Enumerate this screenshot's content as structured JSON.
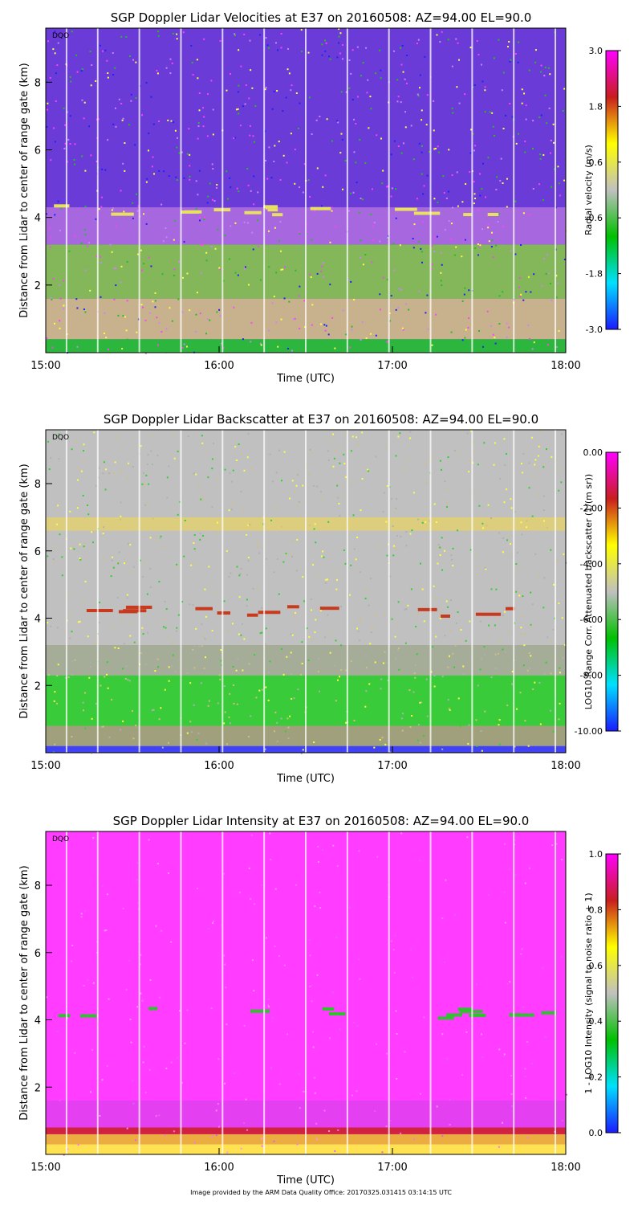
{
  "chart_data": [
    {
      "type": "heatmap",
      "title": "SGP Doppler Lidar Velocities at E37 on 20160508: AZ=94.00 EL=90.0",
      "xlabel": "Time (UTC)",
      "ylabel": "Distance from Lidar to center of range gate (km)",
      "x_ticks": [
        "15:00",
        "16:00",
        "17:00",
        "18:00"
      ],
      "y_ticks": [
        2,
        4,
        6,
        8
      ],
      "ylim": [
        0,
        9.6
      ],
      "xlim": [
        "15:00",
        "18:00"
      ],
      "corner_label": "DQO",
      "colorbar": {
        "label": "Radial velocity (m/s)",
        "ticks": [
          "3.0",
          "1.8",
          "0.6",
          "-0.6",
          "-1.8",
          "-3.0"
        ],
        "min": -3.0,
        "max": 3.0
      },
      "scheme": "velocity"
    },
    {
      "type": "heatmap",
      "title": "SGP Doppler Lidar Backscatter at E37 on 20160508: AZ=94.00 EL=90.0",
      "xlabel": "Time (UTC)",
      "ylabel": "Distance from Lidar to center of range gate (km)",
      "x_ticks": [
        "15:00",
        "16:00",
        "17:00",
        "18:00"
      ],
      "y_ticks": [
        2,
        4,
        6,
        8
      ],
      "ylim": [
        0,
        9.6
      ],
      "xlim": [
        "15:00",
        "18:00"
      ],
      "corner_label": "DQO",
      "colorbar": {
        "label": "LOG10 Range Corr. Attenuated backscatter (1/(m sr))",
        "ticks": [
          "0.00",
          "-2.00",
          "-4.00",
          "-6.00",
          "-8.00",
          "-10.00"
        ],
        "min": -10.0,
        "max": 0.0
      },
      "scheme": "backscatter"
    },
    {
      "type": "heatmap",
      "title": "SGP Doppler Lidar Intensity at E37 on 20160508: AZ=94.00 EL=90.0",
      "xlabel": "Time (UTC)",
      "ylabel": "Distance from Lidar to center of range gate (km)",
      "x_ticks": [
        "15:00",
        "16:00",
        "17:00",
        "18:00"
      ],
      "y_ticks": [
        2,
        4,
        6,
        8
      ],
      "ylim": [
        0,
        9.6
      ],
      "xlim": [
        "15:00",
        "18:00"
      ],
      "corner_label": "DQO",
      "colorbar": {
        "label": "1 - LOG10 Intensity (signal to noise ratio + 1)",
        "ticks": [
          "1.0",
          "0.8",
          "0.6",
          "0.4",
          "0.2",
          "0.0"
        ],
        "min": 0.0,
        "max": 1.0
      },
      "scheme": "intensity"
    }
  ],
  "footer": {
    "credit": "Image provided by the ARM Data Quality Office: 20170325.031415 03:14:15 UTC"
  }
}
